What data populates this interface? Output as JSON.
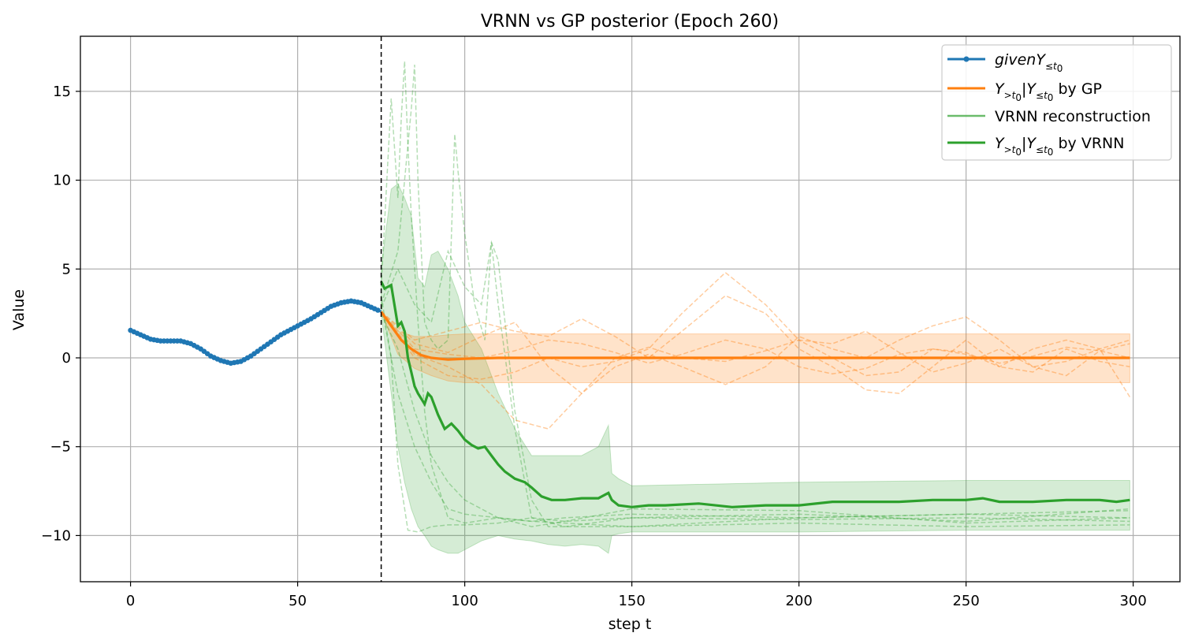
{
  "chart_data": {
    "type": "line",
    "title": "VRNN vs GP posterior (Epoch 260)",
    "xlabel": "step t",
    "ylabel": "Value",
    "xlim": [
      -15,
      314
    ],
    "ylim": [
      -12.6,
      18.1
    ],
    "xticks": [
      0,
      50,
      100,
      150,
      200,
      250,
      300
    ],
    "yticks": [
      -10,
      -5,
      0,
      5,
      10,
      15
    ],
    "grid": true,
    "legend_position": "top-right",
    "t0": 75,
    "colors": {
      "given": "#1f77b4",
      "gp": "#ff7f0e",
      "vrnn": "#2ca02c"
    },
    "legend": [
      {
        "key": "given",
        "main": "given",
        "sym": "Y",
        "sub": "≤t",
        "sub2": "0",
        "tail": ""
      },
      {
        "key": "gp",
        "main": "",
        "sym": "Y",
        "sub": ">t",
        "sub2": "0",
        "cond": "|Y",
        "csub": "≤t",
        "csub2": "0",
        "tail": " by GP"
      },
      {
        "key": "recon",
        "label": "VRNN reconstruction"
      },
      {
        "key": "vrnn",
        "main": "",
        "sym": "Y",
        "sub": ">t",
        "sub2": "0",
        "cond": "|Y",
        "csub": "≤t",
        "csub2": "0",
        "tail": " by VRNN"
      }
    ],
    "given_series": {
      "x": [
        0,
        3,
        6,
        9,
        12,
        15,
        18,
        21,
        24,
        27,
        30,
        33,
        36,
        39,
        42,
        45,
        48,
        51,
        54,
        57,
        60,
        63,
        66,
        69,
        72,
        75
      ],
      "y": [
        1.55,
        1.3,
        1.05,
        0.95,
        0.95,
        0.95,
        0.8,
        0.5,
        0.1,
        -0.15,
        -0.3,
        -0.2,
        0.1,
        0.5,
        0.9,
        1.3,
        1.6,
        1.9,
        2.2,
        2.55,
        2.9,
        3.1,
        3.2,
        3.1,
        2.85,
        2.6
      ]
    },
    "gp_mean": {
      "x": [
        75,
        78,
        81,
        84,
        87,
        90,
        95,
        100,
        110,
        120,
        150,
        200,
        250,
        299
      ],
      "y": [
        2.6,
        1.8,
        1.0,
        0.5,
        0.15,
        0.0,
        -0.1,
        -0.05,
        0.0,
        0.0,
        0.0,
        0.0,
        0.0,
        0.0
      ]
    },
    "gp_band": {
      "x": [
        75,
        80,
        85,
        90,
        95,
        100,
        110,
        150,
        200,
        250,
        299
      ],
      "upper": [
        2.6,
        1.5,
        1.2,
        1.2,
        1.3,
        1.35,
        1.35,
        1.35,
        1.35,
        1.35,
        1.35
      ],
      "lower": [
        2.6,
        0.2,
        -0.6,
        -1.0,
        -1.3,
        -1.4,
        -1.4,
        -1.4,
        -1.4,
        -1.4,
        -1.4
      ]
    },
    "gp_samples": [
      {
        "x": [
          75,
          85,
          95,
          105,
          115,
          125,
          135,
          145,
          155,
          165,
          178,
          190,
          200,
          210,
          220,
          230,
          240,
          250,
          260,
          270,
          280,
          290,
          299
        ],
        "y": [
          2.6,
          0.5,
          0.2,
          0.0,
          0.4,
          1.0,
          0.8,
          0.3,
          -0.3,
          0.2,
          1.0,
          0.5,
          -0.5,
          -0.9,
          -0.6,
          0.2,
          0.5,
          0.2,
          -0.3,
          0.1,
          0.6,
          0.4,
          0.0
        ]
      },
      {
        "x": [
          75,
          85,
          95,
          105,
          115,
          125,
          135,
          145,
          155,
          165,
          178,
          190,
          200,
          210,
          220,
          230,
          240,
          250,
          260,
          270,
          280,
          290,
          299
        ],
        "y": [
          2.6,
          1.0,
          1.5,
          2.0,
          1.5,
          1.2,
          2.2,
          1.2,
          0.0,
          1.5,
          3.5,
          2.5,
          0.5,
          -0.5,
          -1.8,
          -2.0,
          -0.5,
          1.0,
          -0.5,
          -0.8,
          0.5,
          -0.2,
          -0.5
        ]
      },
      {
        "x": [
          75,
          85,
          95,
          105,
          115,
          125,
          135,
          145,
          155,
          165,
          178,
          190,
          200,
          210,
          220,
          230,
          240,
          250,
          260,
          270,
          280,
          290,
          299
        ],
        "y": [
          2.6,
          0.0,
          -1.0,
          -1.2,
          -0.8,
          0.0,
          -0.5,
          -0.2,
          0.5,
          2.5,
          4.8,
          3.0,
          1.0,
          0.8,
          1.5,
          0.3,
          -0.8,
          -0.3,
          0.5,
          -0.5,
          -1.0,
          0.4,
          0.8
        ]
      },
      {
        "x": [
          75,
          85,
          95,
          105,
          115,
          125,
          135,
          145,
          155,
          165,
          178,
          190,
          200,
          210,
          220,
          230,
          240,
          250,
          260,
          270,
          280,
          290,
          299
        ],
        "y": [
          2.6,
          0.2,
          -0.5,
          -1.5,
          -3.5,
          -4.0,
          -2.0,
          -0.5,
          0.2,
          -0.5,
          -1.5,
          -0.5,
          1.2,
          0.5,
          0.0,
          1.0,
          1.8,
          2.3,
          1.0,
          -0.5,
          -0.2,
          0.5,
          -2.2
        ]
      },
      {
        "x": [
          75,
          85,
          95,
          105,
          115,
          125,
          135,
          145,
          155,
          165,
          178,
          190,
          200,
          210,
          220,
          230,
          240,
          250,
          260,
          270,
          280,
          290,
          299
        ],
        "y": [
          2.6,
          0.8,
          0.3,
          1.2,
          2.0,
          -0.5,
          -2.0,
          0.0,
          0.6,
          0.0,
          -0.2,
          0.4,
          1.0,
          0.0,
          -1.0,
          -0.8,
          0.5,
          0.3,
          -0.5,
          0.5,
          1.0,
          0.5,
          1.0
        ]
      }
    ],
    "vrnn_mean": {
      "x": [
        75,
        76,
        78,
        80,
        81,
        82,
        83,
        84,
        85,
        86,
        87,
        88,
        89,
        90,
        92,
        94,
        96,
        98,
        100,
        102,
        104,
        106,
        108,
        110,
        112,
        115,
        118,
        120,
        123,
        126,
        130,
        135,
        140,
        142,
        143,
        144,
        146,
        150,
        155,
        160,
        170,
        180,
        190,
        200,
        210,
        220,
        230,
        240,
        250,
        255,
        260,
        270,
        280,
        290,
        295,
        299
      ],
      "y": [
        4.3,
        3.9,
        4.1,
        1.8,
        2.0,
        1.5,
        0.0,
        -0.8,
        -1.6,
        -2.0,
        -2.3,
        -2.6,
        -2.0,
        -2.2,
        -3.2,
        -4.0,
        -3.7,
        -4.1,
        -4.6,
        -4.9,
        -5.1,
        -5.0,
        -5.5,
        -6.0,
        -6.4,
        -6.8,
        -7.0,
        -7.3,
        -7.8,
        -8.0,
        -8.0,
        -7.9,
        -7.9,
        -7.7,
        -7.6,
        -8.0,
        -8.3,
        -8.4,
        -8.3,
        -8.3,
        -8.2,
        -8.4,
        -8.3,
        -8.3,
        -8.1,
        -8.1,
        -8.1,
        -8.0,
        -8.0,
        -7.9,
        -8.1,
        -8.1,
        -8.0,
        -8.0,
        -8.1,
        -8.0
      ]
    },
    "vrnn_band": {
      "x": [
        75,
        78,
        80,
        82,
        84,
        86,
        88,
        90,
        92,
        95,
        98,
        100,
        105,
        110,
        115,
        120,
        125,
        130,
        135,
        140,
        143,
        144,
        146,
        150,
        200,
        250,
        299
      ],
      "upper": [
        5.0,
        9.5,
        9.8,
        9.0,
        8.0,
        4.5,
        4.0,
        5.8,
        6.0,
        5.0,
        3.5,
        2.0,
        0.5,
        -2.0,
        -4.0,
        -5.5,
        -5.5,
        -5.5,
        -5.5,
        -5.0,
        -3.8,
        -6.5,
        -6.8,
        -7.2,
        -7.0,
        -6.9,
        -6.9
      ],
      "lower": [
        2.5,
        -2.0,
        -5.0,
        -7.0,
        -8.5,
        -9.5,
        -10.0,
        -10.6,
        -10.8,
        -11.0,
        -11.0,
        -10.8,
        -10.3,
        -10.0,
        -10.2,
        -10.3,
        -10.5,
        -10.6,
        -10.5,
        -10.6,
        -11.0,
        -10.0,
        -9.9,
        -9.8,
        -9.8,
        -9.7,
        -9.7
      ]
    },
    "vrnn_samples": [
      {
        "x": [
          75,
          78,
          80,
          81,
          82,
          83,
          84,
          86,
          88,
          90,
          95,
          100,
          110,
          120,
          130,
          150,
          200,
          250,
          299
        ],
        "y": [
          4.0,
          14.6,
          9.0,
          13.5,
          16.7,
          12.0,
          8.0,
          2.0,
          -3.0,
          -6.0,
          -9.0,
          -9.3,
          -9.0,
          -9.2,
          -9.0,
          -8.8,
          -9.0,
          -8.8,
          -9.0
        ]
      },
      {
        "x": [
          75,
          80,
          82,
          84,
          85,
          86,
          87,
          88,
          90,
          92,
          95,
          97,
          98,
          100,
          103,
          106,
          108,
          110,
          115,
          120,
          130,
          150,
          200,
          250,
          299
        ],
        "y": [
          3.0,
          6.0,
          10.0,
          14.0,
          16.5,
          10.0,
          6.0,
          2.0,
          1.0,
          0.5,
          1.0,
          12.6,
          10.5,
          7.0,
          3.0,
          1.0,
          6.5,
          3.0,
          -4.0,
          -9.0,
          -9.5,
          -9.0,
          -8.8,
          -9.2,
          -8.5
        ]
      },
      {
        "x": [
          75,
          80,
          85,
          90,
          95,
          100,
          105,
          108,
          110,
          115,
          120,
          125,
          130,
          150,
          200,
          250,
          299
        ],
        "y": [
          2.8,
          5.0,
          3.0,
          2.0,
          6.0,
          4.0,
          3.0,
          6.5,
          5.5,
          -3.0,
          -8.0,
          -9.5,
          -9.5,
          -9.5,
          -9.3,
          -9.5,
          -9.4
        ]
      },
      {
        "x": [
          75,
          78,
          80,
          83,
          86,
          90,
          95,
          100,
          110,
          120,
          130,
          150,
          200,
          250,
          299
        ],
        "y": [
          3.5,
          0.0,
          -6.0,
          -9.7,
          -9.8,
          -9.5,
          -9.4,
          -9.4,
          -9.3,
          -9.0,
          -9.2,
          -9.0,
          -9.1,
          -9.0,
          -9.2
        ]
      },
      {
        "x": [
          75,
          80,
          85,
          90,
          95,
          100,
          110,
          120,
          130,
          150,
          200,
          250,
          299
        ],
        "y": [
          3.0,
          -2.0,
          -5.0,
          -7.0,
          -8.5,
          -8.8,
          -9.0,
          -9.2,
          -9.3,
          -9.5,
          -9.0,
          -8.8,
          -8.6
        ]
      },
      {
        "x": [
          75,
          80,
          85,
          90,
          95,
          100,
          110,
          120,
          130,
          150,
          200,
          250,
          299
        ],
        "y": [
          2.5,
          0.5,
          -3.0,
          -5.5,
          -7.0,
          -8.0,
          -9.0,
          -9.5,
          -9.2,
          -8.5,
          -8.6,
          -9.3,
          -9.0
        ]
      }
    ]
  }
}
